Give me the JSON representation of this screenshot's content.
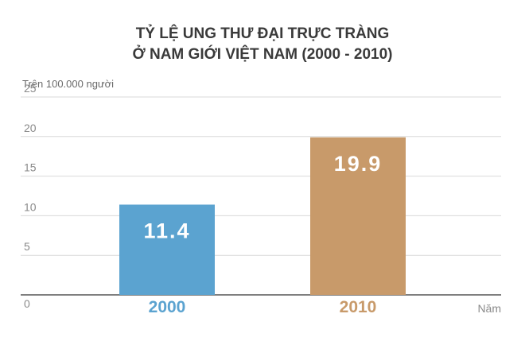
{
  "chart_data": {
    "type": "bar",
    "title_line1": "TỶ LỆ UNG THƯ ĐẠI TRỰC TRÀNG",
    "title_line2": "Ở NAM GIỚI VIỆT NAM (2000 - 2010)",
    "ylabel": "Trên 100.000 người",
    "xlabel": "Năm",
    "categories": [
      "2000",
      "2010"
    ],
    "values": [
      11.4,
      19.9
    ],
    "value_labels": [
      "11.4",
      "19.9"
    ],
    "colors": [
      "#5ba3d0",
      "#c89a6a"
    ],
    "yticks": [
      "0",
      "5",
      "10",
      "15",
      "20",
      "25"
    ],
    "ylim": [
      0,
      25
    ],
    "grid": true,
    "legend": "none"
  }
}
